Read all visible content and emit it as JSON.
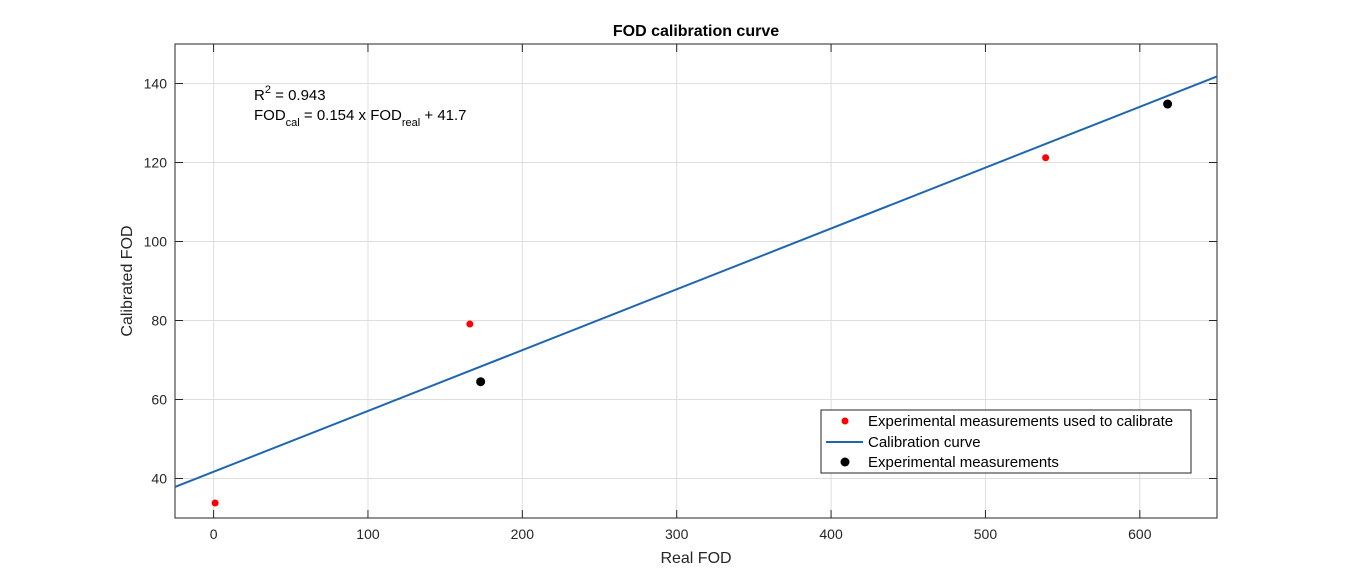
{
  "chart_data": {
    "type": "scatter",
    "title": "FOD calibration curve",
    "xlabel": "Real FOD",
    "ylabel": "Calibrated FOD",
    "xlim": [
      -25,
      650
    ],
    "ylim": [
      30,
      150
    ],
    "xticks": [
      0,
      100,
      200,
      300,
      400,
      500,
      600
    ],
    "yticks": [
      40,
      60,
      80,
      100,
      120,
      140
    ],
    "grid": true,
    "legend_position": "bottom-right",
    "series": [
      {
        "name": "Experimental measurements used to calibrate",
        "kind": "scatter",
        "color": "#ff0000",
        "x": [
          1,
          166,
          539
        ],
        "y": [
          33.8,
          79.1,
          121.2
        ]
      },
      {
        "name": "Calibration curve",
        "kind": "line",
        "color": "#1f66b0",
        "slope": 0.154,
        "intercept": 41.7,
        "x": [
          -25,
          650
        ],
        "y": [
          37.85,
          141.8
        ]
      },
      {
        "name": "Experimental measurements",
        "kind": "scatter",
        "color": "#000000",
        "x": [
          173,
          618
        ],
        "y": [
          64.5,
          134.8
        ]
      }
    ],
    "annotations": {
      "r2_label": "R",
      "r2_sup": "2",
      "r2_value": " = 0.943",
      "eq_fod1": "FOD",
      "eq_sub1": "cal",
      "eq_mid": " = 0.154 x FOD",
      "eq_sub2": "real",
      "eq_end": " + 41.7"
    }
  }
}
